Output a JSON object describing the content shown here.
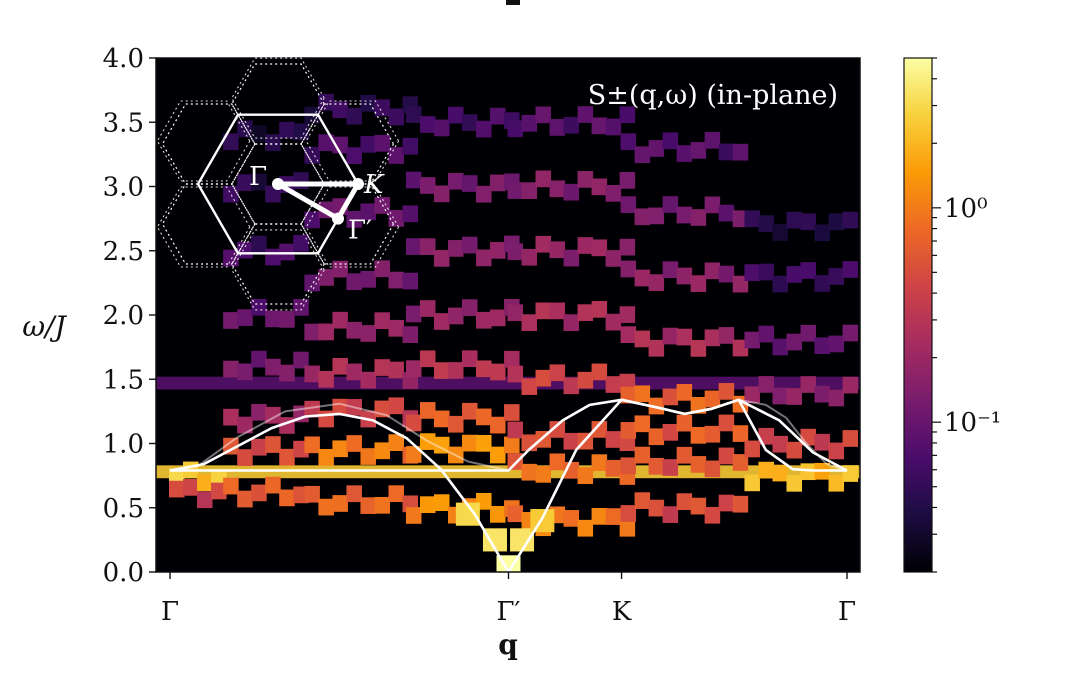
{
  "chart_data": {
    "type": "heatmap",
    "title": "S±(q,ω) (in-plane)",
    "xlabel": "q",
    "ylabel": "ω/J",
    "ylim": [
      0.0,
      4.0
    ],
    "yticks": [
      "0.0",
      "0.5",
      "1.0",
      "1.5",
      "2.0",
      "2.5",
      "3.0",
      "3.5",
      "4.0"
    ],
    "xlim": [
      0.0,
      1.0
    ],
    "xticks": [
      {
        "pos": 0.0,
        "label": "Γ"
      },
      {
        "pos": 0.5,
        "label": "Γ′"
      },
      {
        "pos": 0.667,
        "label": "K"
      },
      {
        "pos": 1.0,
        "label": "Γ"
      }
    ],
    "colorbar": {
      "scale": "log",
      "range": [
        0.02,
        5.0
      ],
      "ticks": [
        {
          "value": 1.0,
          "label": "10⁰"
        },
        {
          "value": 0.1,
          "label": "10⁻¹"
        }
      ],
      "colormap": [
        "#000004",
        "#1b0c41",
        "#4a0c6b",
        "#781c6d",
        "#a52c60",
        "#cf4446",
        "#ed6925",
        "#fb9b06",
        "#f7d13d",
        "#fcffa4"
      ]
    },
    "dispersion_curves": [
      {
        "style": "white",
        "points": [
          [
            0.0,
            0.79
          ],
          [
            0.05,
            0.84
          ],
          [
            0.1,
            0.98
          ],
          [
            0.15,
            1.12
          ],
          [
            0.2,
            1.21
          ],
          [
            0.25,
            1.23
          ],
          [
            0.3,
            1.18
          ],
          [
            0.35,
            1.04
          ],
          [
            0.4,
            0.8
          ],
          [
            0.45,
            0.45
          ],
          [
            0.5,
            0.0
          ],
          [
            0.55,
            0.42
          ],
          [
            0.6,
            0.95
          ],
          [
            0.667,
            1.34
          ],
          [
            0.72,
            1.28
          ],
          [
            0.76,
            1.23
          ],
          [
            0.8,
            1.27
          ],
          [
            0.84,
            1.34
          ],
          [
            0.9,
            1.18
          ],
          [
            0.95,
            0.93
          ],
          [
            1.0,
            0.79
          ]
        ]
      },
      {
        "style": "white",
        "points": [
          [
            0.0,
            0.79
          ],
          [
            0.1,
            0.79
          ],
          [
            0.2,
            0.79
          ],
          [
            0.3,
            0.79
          ],
          [
            0.4,
            0.79
          ],
          [
            0.5,
            0.79
          ],
          [
            0.53,
            0.95
          ],
          [
            0.58,
            1.18
          ],
          [
            0.62,
            1.3
          ],
          [
            0.667,
            1.34
          ],
          [
            0.72,
            1.28
          ],
          [
            0.76,
            1.23
          ],
          [
            0.8,
            1.27
          ],
          [
            0.84,
            1.34
          ],
          [
            0.88,
            0.95
          ],
          [
            0.92,
            0.8
          ],
          [
            0.95,
            0.79
          ],
          [
            1.0,
            0.79
          ]
        ]
      },
      {
        "style": "faint",
        "points": [
          [
            0.0,
            0.79
          ],
          [
            0.04,
            0.82
          ],
          [
            0.1,
            1.05
          ],
          [
            0.17,
            1.25
          ],
          [
            0.25,
            1.31
          ],
          [
            0.32,
            1.22
          ],
          [
            0.38,
            1.02
          ],
          [
            0.44,
            0.86
          ],
          [
            0.5,
            0.79
          ]
        ]
      },
      {
        "style": "faint",
        "points": [
          [
            0.84,
            1.34
          ],
          [
            0.88,
            1.3
          ],
          [
            0.91,
            1.2
          ],
          [
            0.94,
            1.0
          ],
          [
            0.97,
            0.84
          ],
          [
            1.0,
            0.79
          ]
        ]
      }
    ],
    "flat_bands": [
      {
        "omega": 0.78,
        "intensity": 2.5
      },
      {
        "omega": 1.47,
        "intensity": 0.08
      }
    ],
    "continuum_segments": [
      {
        "q": [
          0.0,
          0.08
        ],
        "omega": [
          [
            0.74,
            3.0
          ],
          [
            0.62,
            0.5
          ]
        ]
      },
      {
        "q": [
          0.08,
          0.2
        ],
        "omega": [
          [
            0.62,
            0.8
          ],
          [
            0.95,
            0.6
          ],
          [
            1.2,
            0.25
          ],
          [
            1.6,
            0.15
          ],
          [
            2.0,
            0.12
          ],
          [
            2.5,
            0.08
          ],
          [
            3.0,
            0.06
          ],
          [
            3.4,
            0.05
          ]
        ]
      },
      {
        "q": [
          0.2,
          0.35
        ],
        "omega": [
          [
            0.55,
            0.9
          ],
          [
            0.95,
            1.2
          ],
          [
            1.25,
            0.5
          ],
          [
            1.55,
            0.3
          ],
          [
            1.9,
            0.22
          ],
          [
            2.3,
            0.15
          ],
          [
            2.8,
            0.12
          ],
          [
            3.3,
            0.09
          ],
          [
            3.6,
            0.06
          ]
        ]
      },
      {
        "q": [
          0.35,
          0.5
        ],
        "omega": [
          [
            0.5,
            1.5
          ],
          [
            0.97,
            1.6
          ],
          [
            1.2,
            0.8
          ],
          [
            1.6,
            0.35
          ],
          [
            2.0,
            0.22
          ],
          [
            2.5,
            0.18
          ],
          [
            3.0,
            0.15
          ],
          [
            3.5,
            0.08
          ]
        ]
      },
      {
        "q": [
          0.5,
          0.667
        ],
        "omega": [
          [
            0.4,
            1.2
          ],
          [
            0.8,
            1.0
          ],
          [
            1.05,
            0.6
          ],
          [
            1.5,
            0.5
          ],
          [
            2.0,
            0.3
          ],
          [
            2.5,
            0.22
          ],
          [
            3.0,
            0.18
          ],
          [
            3.5,
            0.1
          ]
        ]
      },
      {
        "q": [
          0.667,
          0.85
        ],
        "omega": [
          [
            0.5,
            0.6
          ],
          [
            0.85,
            0.7
          ],
          [
            1.1,
            0.8
          ],
          [
            1.35,
            0.9
          ],
          [
            1.8,
            0.3
          ],
          [
            2.3,
            0.2
          ],
          [
            2.8,
            0.15
          ],
          [
            3.3,
            0.1
          ]
        ]
      },
      {
        "q": [
          0.85,
          1.0
        ],
        "omega": [
          [
            0.75,
            2.5
          ],
          [
            1.0,
            0.5
          ],
          [
            1.4,
            0.2
          ],
          [
            1.8,
            0.12
          ],
          [
            2.3,
            0.07
          ],
          [
            2.7,
            0.05
          ]
        ]
      }
    ],
    "goldstone": [
      {
        "q": 0.5,
        "omega": 0.04,
        "intensity": 5.0
      },
      {
        "q": 0.48,
        "omega": 0.25,
        "intensity": 3.5
      },
      {
        "q": 0.52,
        "omega": 0.25,
        "intensity": 3.5
      },
      {
        "q": 0.44,
        "omega": 0.45,
        "intensity": 3.0
      },
      {
        "q": 0.55,
        "omega": 0.4,
        "intensity": 2.5
      }
    ],
    "inset": {
      "labels": [
        "Γ",
        "K",
        "Γ′"
      ],
      "path": [
        [
          0.0,
          0.0
        ],
        [
          1.0,
          0.0
        ],
        [
          0.75,
          0.433
        ],
        [
          0.0,
          0.0
        ]
      ]
    }
  }
}
